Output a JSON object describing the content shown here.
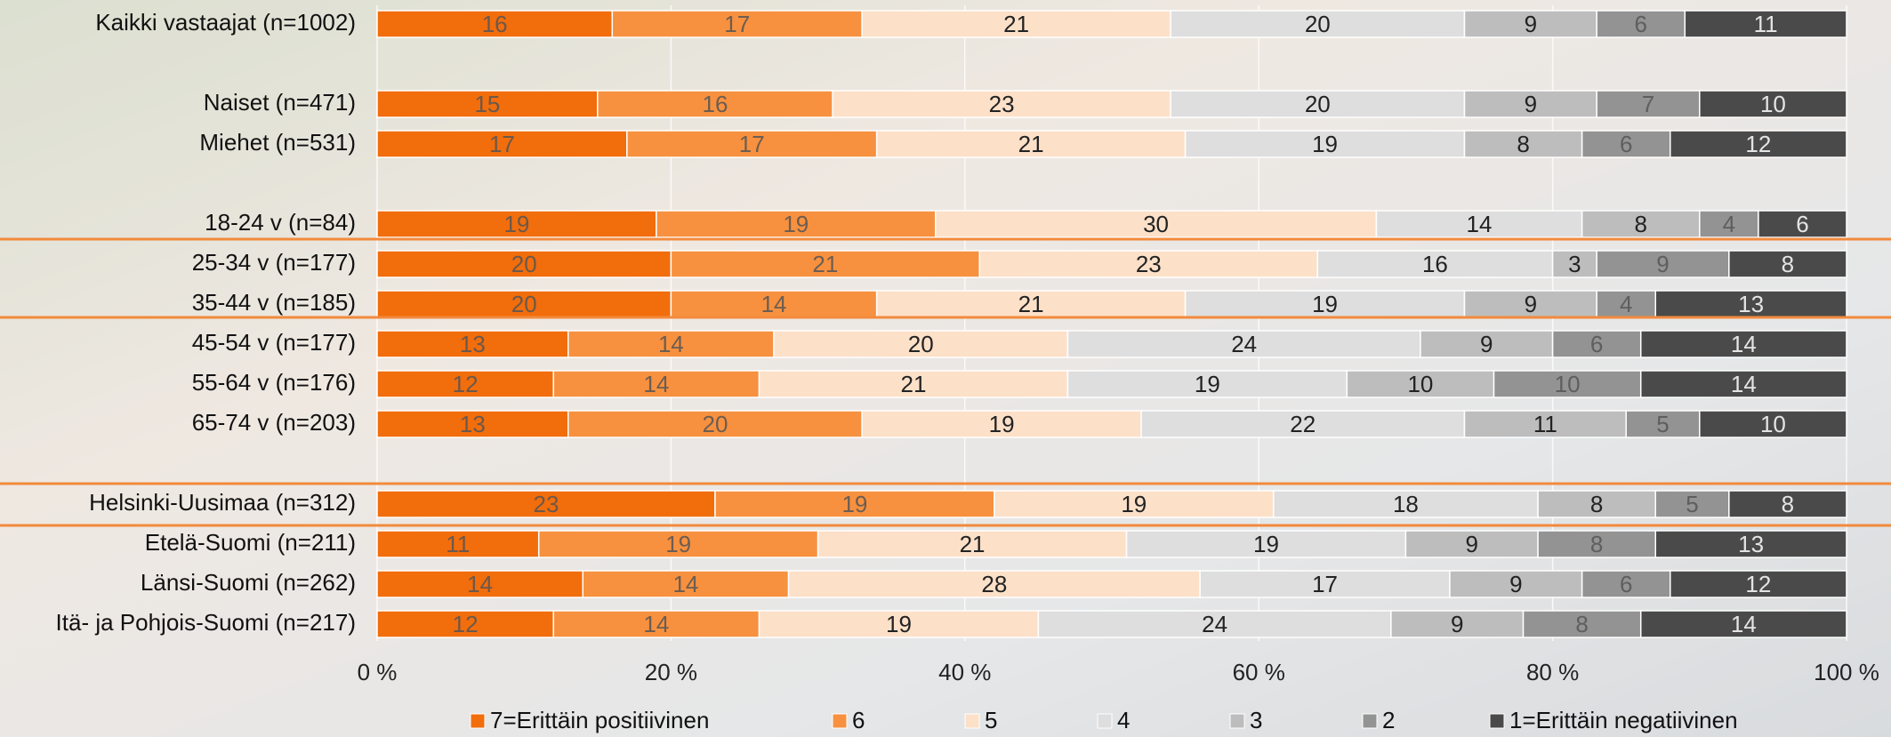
{
  "chart_data": {
    "type": "stacked_barh",
    "categories": [
      "Kaikki vastaajat (n=1002)",
      null,
      "Naiset (n=471)",
      "Miehet (n=531)",
      null,
      "18-24 v (n=84)",
      "25-34 v (n=177)",
      "35-44 v (n=185)",
      "45-54 v (n=177)",
      "55-64 v (n=176)",
      "65-74 v (n=203)",
      null,
      "Helsinki-Uusimaa (n=312)",
      "Etelä-Suomi (n=211)",
      "Länsi-Suomi (n=262)",
      "Itä- ja Pohjois-Suomi (n=217)"
    ],
    "series": [
      {
        "name": "7=Erittäin positiivinen",
        "color": "#f26d0c",
        "values": [
          16,
          null,
          15,
          17,
          null,
          19,
          20,
          20,
          13,
          12,
          13,
          null,
          23,
          11,
          14,
          12
        ]
      },
      {
        "name": "6",
        "color": "#f7913f",
        "values": [
          17,
          null,
          16,
          17,
          null,
          19,
          21,
          14,
          14,
          14,
          20,
          null,
          19,
          19,
          14,
          14
        ]
      },
      {
        "name": "5",
        "color": "#fde0c8",
        "values": [
          21,
          null,
          23,
          21,
          null,
          30,
          23,
          21,
          20,
          21,
          19,
          null,
          19,
          21,
          28,
          19
        ]
      },
      {
        "name": "4",
        "color": "#dedede",
        "values": [
          20,
          null,
          20,
          19,
          null,
          14,
          16,
          19,
          24,
          19,
          22,
          null,
          18,
          19,
          17,
          24
        ]
      },
      {
        "name": "3",
        "color": "#bdbdbd",
        "values": [
          9,
          null,
          9,
          8,
          null,
          8,
          3,
          9,
          9,
          10,
          11,
          null,
          8,
          9,
          9,
          9
        ]
      },
      {
        "name": "2",
        "color": "#939393",
        "values": [
          6,
          null,
          7,
          6,
          null,
          4,
          9,
          4,
          6,
          10,
          5,
          null,
          5,
          8,
          6,
          8
        ]
      },
      {
        "name": "1=Erittäin negatiivinen",
        "color": "#4a4a4a",
        "values": [
          11,
          null,
          10,
          12,
          null,
          6,
          8,
          13,
          14,
          14,
          10,
          null,
          8,
          13,
          12,
          14
        ]
      }
    ],
    "xlim": [
      0,
      100
    ],
    "xticks": [
      {
        "value": 0,
        "label": "0 %"
      },
      {
        "value": 20,
        "label": "20 %"
      },
      {
        "value": 40,
        "label": "40 %"
      },
      {
        "value": 60,
        "label": "60 %"
      },
      {
        "value": 80,
        "label": "80 %"
      },
      {
        "value": 100,
        "label": "100 %"
      }
    ],
    "grid": true,
    "legend": "bottom"
  }
}
